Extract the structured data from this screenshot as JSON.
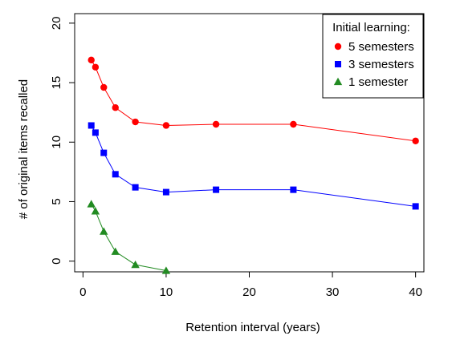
{
  "chart_data": {
    "type": "line",
    "xlabel": "Retention interval (years)",
    "ylabel": "# of original items recalled",
    "xlim": [
      -1,
      41
    ],
    "ylim": [
      -0.9,
      20.8
    ],
    "xticks": [
      0,
      10,
      20,
      30,
      40
    ],
    "yticks": [
      0,
      5,
      10,
      15,
      20
    ],
    "grid": false,
    "legend": {
      "title": "Initial learning:",
      "position": "top-right"
    },
    "series": [
      {
        "name": "5 semesters",
        "color": "#ff0000",
        "marker": "circle",
        "x": [
          1,
          1.5,
          2.5,
          3.9,
          6.3,
          10,
          16,
          25.3,
          40
        ],
        "y": [
          16.9,
          16.3,
          14.6,
          12.9,
          11.7,
          11.4,
          11.5,
          11.5,
          10.1
        ]
      },
      {
        "name": "3 semesters",
        "color": "#0000ff",
        "marker": "square",
        "x": [
          1,
          1.5,
          2.5,
          3.9,
          6.3,
          10,
          16,
          25.3,
          40
        ],
        "y": [
          11.4,
          10.8,
          9.1,
          7.3,
          6.2,
          5.8,
          6.0,
          6.0,
          4.6
        ]
      },
      {
        "name": "1 semester",
        "color": "#228b22",
        "marker": "triangle",
        "x": [
          1,
          1.5,
          2.5,
          3.9,
          6.3,
          10
        ],
        "y": [
          4.8,
          4.2,
          2.5,
          0.8,
          -0.3,
          -0.8
        ]
      }
    ]
  }
}
